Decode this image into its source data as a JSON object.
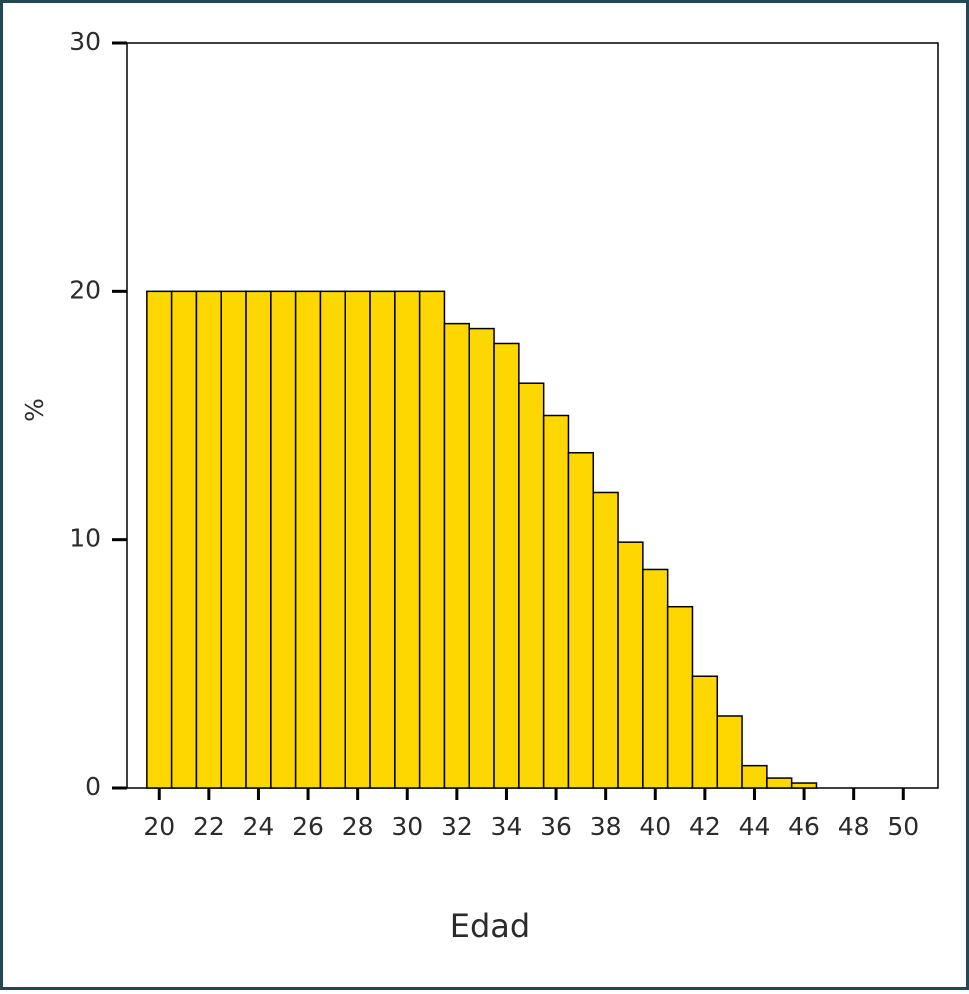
{
  "chart_data": {
    "type": "histogram",
    "xlabel": "Edad",
    "ylabel": "%",
    "bins": [
      19.5,
      20.5,
      21.5,
      22.5,
      23.5,
      24.5,
      25.5,
      26.5,
      27.5,
      28.5,
      29.5,
      30.5,
      31.5,
      32.5,
      33.5,
      34.5,
      35.5,
      36.5,
      37.5,
      38.5,
      39.5,
      40.5,
      41.5,
      42.5,
      43.5,
      44.5,
      45.5,
      46.5
    ],
    "values": [
      20,
      20,
      20,
      20,
      20,
      20,
      20,
      20,
      20,
      20,
      20,
      20,
      18.7,
      18.5,
      17.9,
      16.3,
      15.0,
      13.5,
      11.9,
      9.9,
      8.8,
      7.3,
      4.5,
      2.9,
      0.9,
      0.4,
      0.2
    ],
    "color": "#ffd700",
    "xlim": [
      18.7,
      51.4
    ],
    "xticks": [
      20,
      22,
      24,
      26,
      28,
      30,
      32,
      34,
      36,
      38,
      40,
      42,
      44,
      46,
      48,
      50
    ],
    "ylim": [
      0,
      30
    ],
    "yticks": [
      0,
      10,
      20,
      30
    ],
    "grid": false
  }
}
